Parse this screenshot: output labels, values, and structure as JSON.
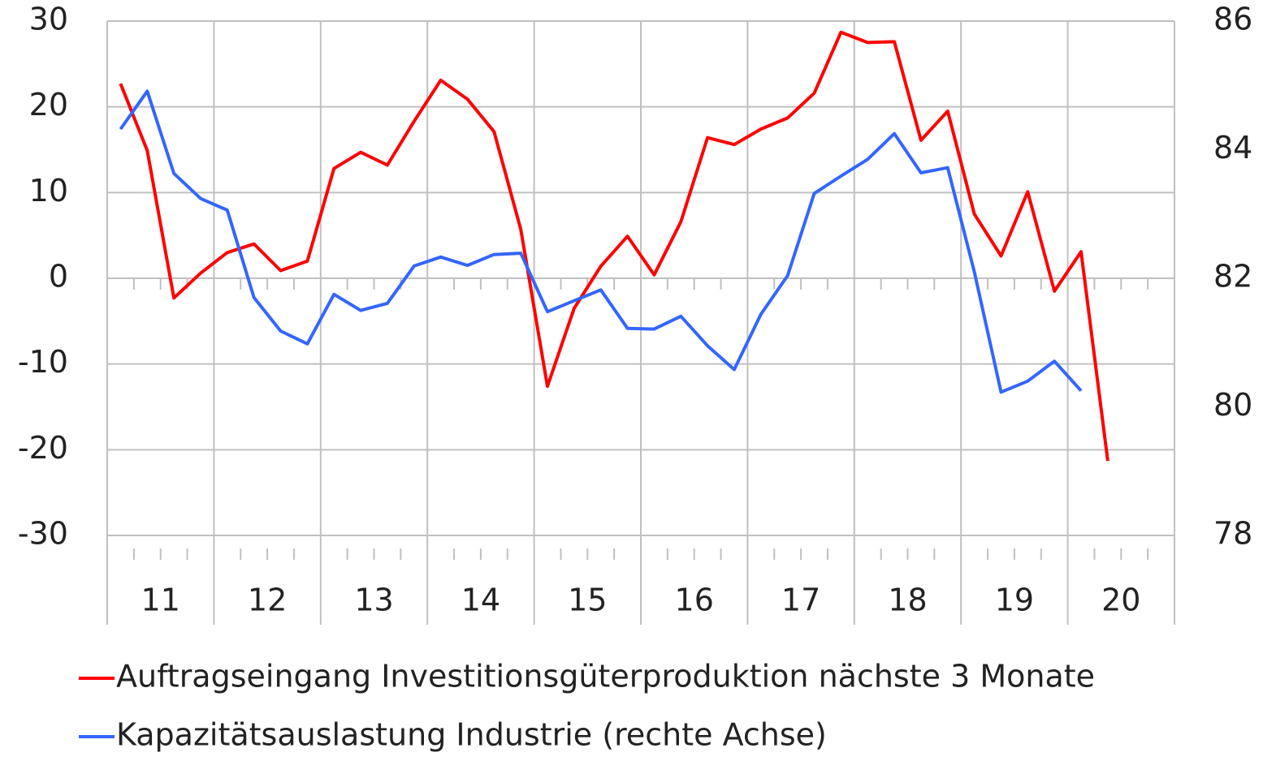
{
  "chart_data": {
    "type": "line",
    "categories": [
      "11",
      null,
      null,
      null,
      "12",
      null,
      null,
      null,
      "13",
      null,
      null,
      null,
      "14",
      null,
      null,
      null,
      "15",
      null,
      null,
      null,
      "16",
      null,
      null,
      null,
      "17",
      null,
      null,
      null,
      "18",
      null,
      null,
      null,
      "19",
      null,
      null,
      null,
      "20",
      null,
      null,
      null
    ],
    "series": [
      {
        "name": "Auftragseingang Investitionsgüterproduktion nächste 3 Monate",
        "color": "#ff0000",
        "values": [
          22.7,
          14.9,
          -2.3,
          0.6,
          3.0,
          4.0,
          0.9,
          2.0,
          12.8,
          14.7,
          13.2,
          18.3,
          23.1,
          20.9,
          17.1,
          5.7,
          -12.6,
          -3.5,
          1.4,
          4.9,
          0.4,
          6.6,
          16.4,
          15.6,
          17.4,
          18.7,
          21.6,
          28.7,
          27.5,
          27.6,
          16.1,
          19.5,
          7.5,
          2.6,
          10.1,
          -1.5,
          3.1,
          -21.3,
          null,
          null
        ]
      },
      {
        "name": "Kapazitätsauslastung Industrie (rechte Achse)",
        "color": "#3366ff",
        "axis": "y2",
        "values": [
          84.32,
          84.91,
          83.63,
          83.24,
          83.06,
          81.7,
          81.18,
          80.98,
          81.75,
          81.5,
          81.61,
          82.19,
          82.33,
          82.2,
          82.37,
          82.39,
          81.48,
          81.65,
          81.82,
          81.22,
          81.21,
          81.41,
          80.95,
          80.58,
          81.44,
          82.04,
          83.32,
          83.59,
          83.85,
          84.25,
          83.64,
          83.72,
          82.1,
          80.23,
          80.4,
          80.71,
          80.25,
          null,
          null,
          null
        ]
      }
    ],
    "ylim": [
      -30,
      30
    ],
    "yticks": [
      -30,
      -20,
      -10,
      0,
      10,
      20,
      30
    ],
    "y2lim": [
      78,
      86
    ],
    "y2ticks": [
      78,
      80,
      82,
      84,
      86
    ],
    "grid": true
  }
}
